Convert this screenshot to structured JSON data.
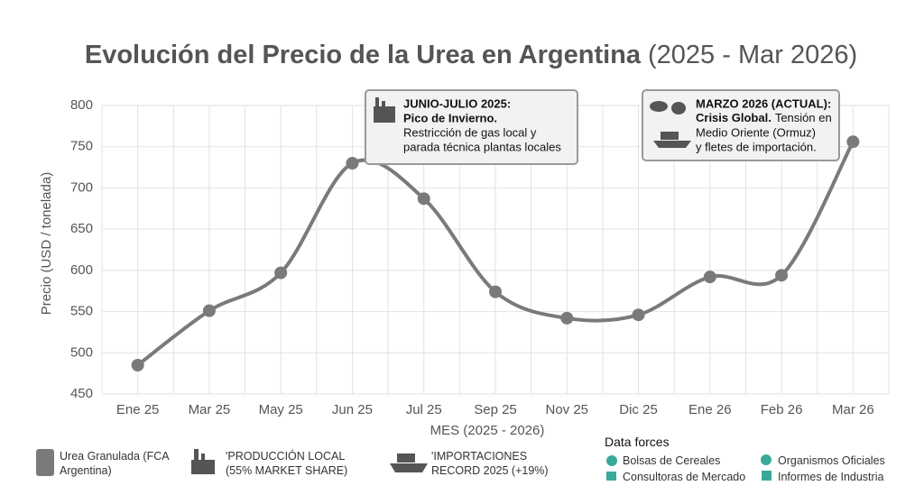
{
  "chart_data": {
    "type": "line",
    "title": "Evolución del Precio de la Urea en Argentina",
    "subtitle": "(2025 - Mar 2026)",
    "y_label": "Precio (USD / tonelada)",
    "x_label": "MES (2025 - 2026)",
    "categories": [
      "Ene 25",
      "Mar 25",
      "May 25",
      "Jun 25",
      "Jul 25",
      "Sep 25",
      "Nov 25",
      "Dic 25",
      "Ene 26",
      "Feb 26",
      "Mar 26"
    ],
    "series": [
      {
        "name": "Urea Granulada (FCA Argentina)",
        "color": "#7a7a7a",
        "values": [
          485,
          551,
          597,
          730,
          687,
          574,
          542,
          546,
          592,
          594,
          756
        ]
      }
    ],
    "ylim": [
      450,
      800
    ],
    "yticks": [
      450,
      500,
      550,
      600,
      650,
      700,
      750,
      800
    ],
    "grid": true,
    "annotations": [
      {
        "title": "JUNIO-JULIO 2025:",
        "lead": "Pico de Invierno.",
        "lines": [
          "Restricción de gas local y",
          "parada técnica plantas locales"
        ]
      },
      {
        "title": "MARZO 2026 (ACTUAL):",
        "lead": "Crisis Global.",
        "lines": [
          "Tensión en",
          "Medio Oriente (Ormuz)",
          "y fletes de importación."
        ]
      }
    ],
    "legend_notes": [
      "'PRODUCCIÓN LOCAL (55% MARKET SHARE)",
      "'IMPORTACIONES RECORD 2025 (+19%)"
    ],
    "sources": {
      "title": "Data forces",
      "items": [
        "Bolsas de Cereales",
        "Consultoras de Mercado",
        "Organismos Oficiales",
        "Informes de Industria"
      ]
    }
  }
}
